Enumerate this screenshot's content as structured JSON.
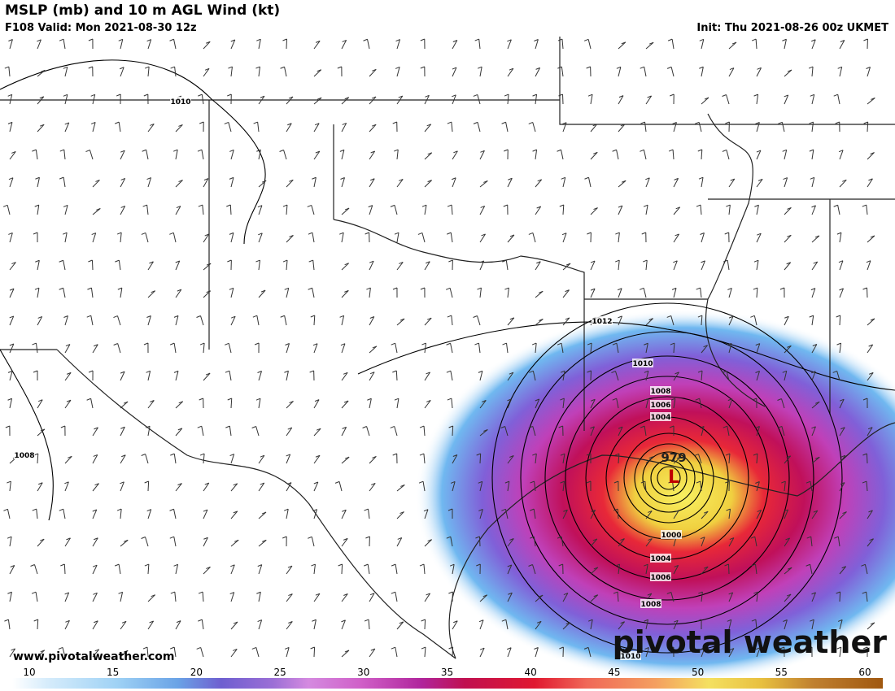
{
  "header": {
    "title": "MSLP (mb) and 10 m AGL Wind (kt)",
    "valid": "F108 Valid: Mon 2021-08-30 12z",
    "init": "Init: Thu 2021-08-26 00z UKMET"
  },
  "map": {
    "isobar_labels": [
      "1010",
      "1012",
      "1010",
      "1008",
      "1006",
      "1004",
      "1000",
      "1004",
      "1006",
      "1008",
      "1010",
      "1008"
    ],
    "low_label": "L",
    "central_pressure": "979"
  },
  "footer": {
    "url": "www.pivotalweather.com",
    "watermark": "pivotal weather"
  },
  "colorbar": {
    "ticks": [
      10,
      15,
      20,
      25,
      30,
      35,
      40,
      45,
      50,
      55,
      60
    ]
  }
}
